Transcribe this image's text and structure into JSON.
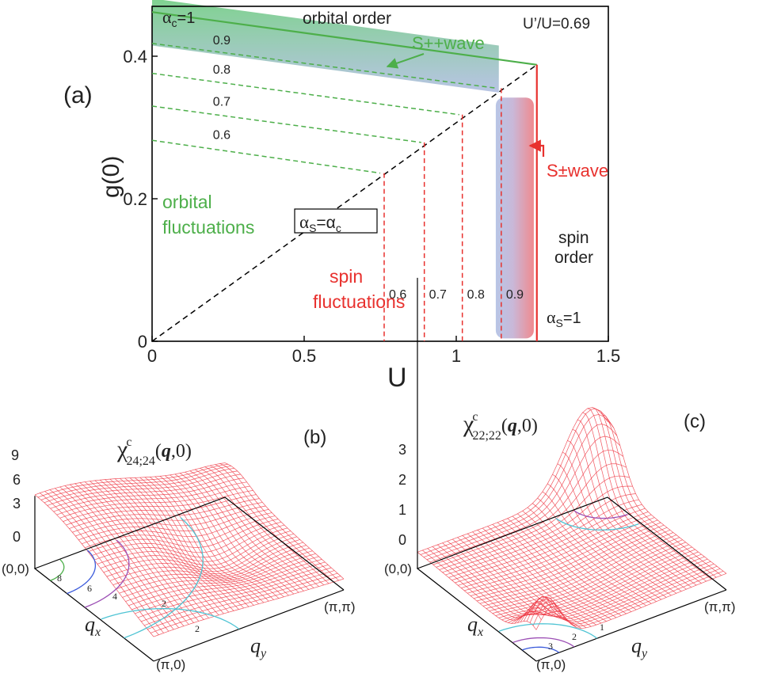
{
  "chart_data": [
    {
      "type": "line",
      "panel_label": "(a)",
      "xlabel": "U",
      "ylabel": "g(0)",
      "xlim": [
        0,
        1.5
      ],
      "ylim": [
        0,
        0.47
      ],
      "x_ticks": [
        "0",
        "0.5",
        "1",
        "1.5"
      ],
      "x_tick_values": [
        0,
        0.5,
        1,
        1.5
      ],
      "y_ticks": [
        "0",
        "0.2",
        "0.4"
      ],
      "y_tick_values": [
        0,
        0.2,
        0.4
      ],
      "parameter": "U’/U=0.69",
      "diagonal_label": "α_S=α_C",
      "diagonal_label_parts": {
        "alpha": "α",
        "sub1": "S",
        "eq": "=α",
        "sub2": "c"
      },
      "orbital_boundary_label": {
        "alpha": "α",
        "sub": "c",
        "rest": "=1"
      },
      "spin_boundary_label": {
        "alpha": "α",
        "sub": "S",
        "rest": "=1"
      },
      "critical_point": [
        1.265,
        0.388
      ],
      "orbital_boundary_start": [
        0,
        0.462
      ],
      "orbital_contours": [
        {
          "label": "0.9",
          "start": [
            0,
            0.418
          ],
          "end": [
            1.135,
            0.355
          ]
        },
        {
          "label": "0.8",
          "start": [
            0,
            0.376
          ],
          "end": [
            1.01,
            0.318
          ]
        },
        {
          "label": "0.7",
          "start": [
            0,
            0.33
          ],
          "end": [
            0.885,
            0.279
          ]
        },
        {
          "label": "0.6",
          "start": [
            0,
            0.282
          ],
          "end": [
            0.75,
            0.236
          ]
        }
      ],
      "spin_contours": [
        {
          "label": "0.6",
          "u": 0.763,
          "top": 0.236
        },
        {
          "label": "0.7",
          "u": 0.895,
          "top": 0.279
        },
        {
          "label": "0.8",
          "u": 1.02,
          "top": 0.318
        },
        {
          "label": "0.9",
          "u": 1.148,
          "top": 0.355
        }
      ],
      "regions": {
        "orbital_order": "orbital order",
        "spin_order_line1": "spin",
        "spin_order_line2": "order",
        "orbital_fluct_line1": "orbital",
        "orbital_fluct_line2": "fluctuations",
        "spin_fluct_line1": "spin",
        "spin_fluct_line2": "fluctuations"
      },
      "annotations": {
        "s_plus_plus": "S++wave",
        "s_plus_minus": "S±wave"
      },
      "colors": {
        "orbital": "#4daf4a",
        "spin": "#e8312e",
        "band_blue": "#aebde0",
        "band_green": "#7fd28f",
        "band_red": "#f08a8f"
      }
    },
    {
      "type": "surface",
      "panel_label": "(b)",
      "title_parts": {
        "chi": "χ",
        "sup": "c",
        "sub": "24;24",
        "arg_open": "(",
        "arg_q": "q",
        "arg_close": ",0)"
      },
      "z_ticks": [
        "9",
        "6",
        "3",
        "0"
      ],
      "z_tick_values": [
        9,
        6,
        3,
        0
      ],
      "corners": {
        "origin": "(0,0)",
        "x_end": "(π,0)",
        "y_end": "(π,π)"
      },
      "xlabel": "q",
      "xlabel_sub": "x",
      "ylabel": "q",
      "ylabel_sub": "y",
      "contour_labels": [
        "8",
        "6",
        "4",
        "2",
        "2"
      ]
    },
    {
      "type": "surface",
      "panel_label": "(c)",
      "title_parts": {
        "chi": "χ",
        "sup": "c",
        "sub": "22;22",
        "arg_open": "(",
        "arg_q": "q",
        "arg_close": ",0)"
      },
      "z_ticks": [
        "3",
        "2",
        "1",
        "0"
      ],
      "z_tick_values": [
        3,
        2,
        1,
        0
      ],
      "corners": {
        "origin": "(0,0)",
        "x_end": "(π,0)",
        "y_end": "(π,π)"
      },
      "xlabel": "q",
      "xlabel_sub": "x",
      "ylabel": "q",
      "ylabel_sub": "y",
      "contour_labels": [
        "1",
        "2",
        "3"
      ]
    }
  ]
}
